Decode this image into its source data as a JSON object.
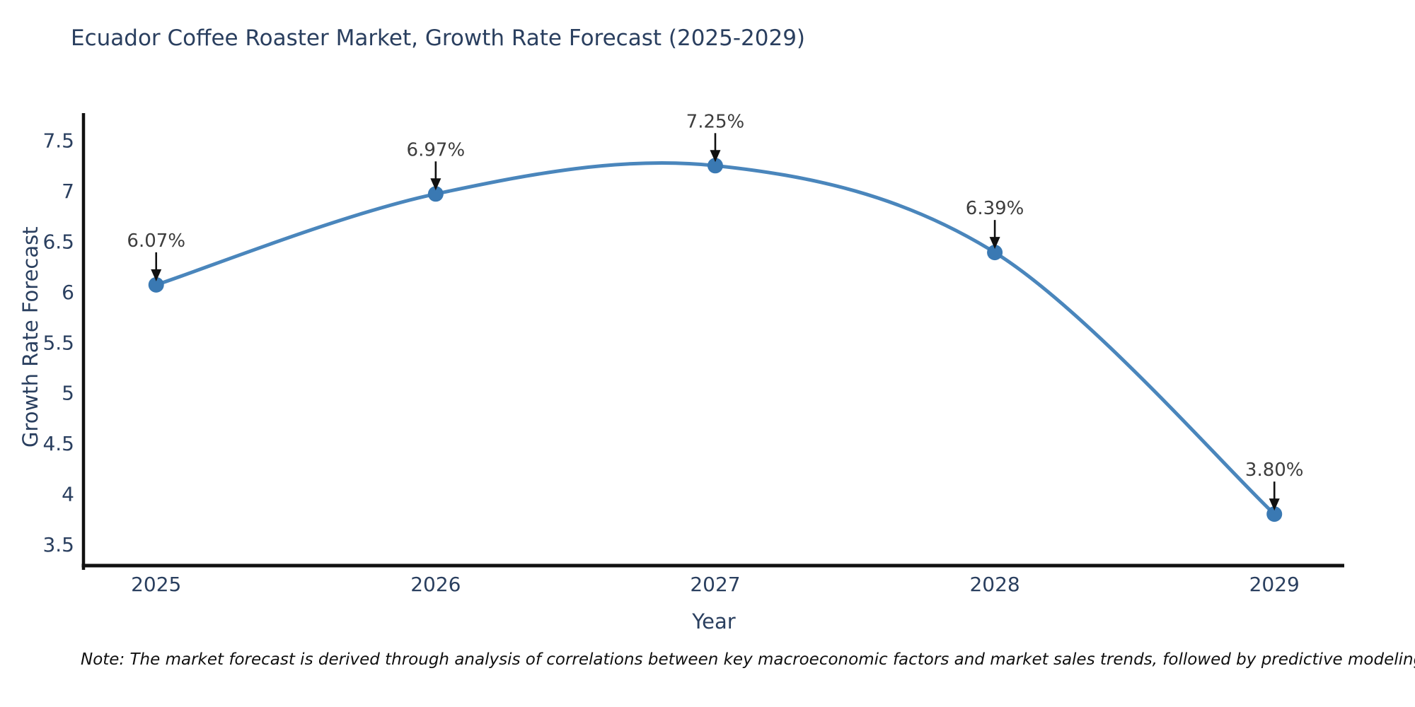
{
  "chart_data": {
    "type": "line",
    "title": "Ecuador Coffee Roaster Market, Growth Rate Forecast (2025-2029)",
    "xlabel": "Year",
    "ylabel": "Growth Rate Forecast",
    "x": [
      2025,
      2026,
      2027,
      2028,
      2029
    ],
    "values": [
      6.07,
      6.97,
      7.25,
      6.39,
      3.8
    ],
    "point_labels": [
      "6.07%",
      "6.97%",
      "7.25%",
      "6.39%",
      "3.80%"
    ],
    "x_tick_labels": [
      "2025",
      "2026",
      "2027",
      "2028",
      "2029"
    ],
    "y_tick_values": [
      7.5,
      7.0,
      6.5,
      6.0,
      5.5,
      5.0,
      4.5,
      4.0,
      3.5
    ],
    "y_tick_labels": [
      "7.5",
      "7",
      "6.5",
      "6",
      "5.5",
      "5",
      "4.5",
      "4",
      "3.5"
    ],
    "xlim": [
      2024.74,
      2029.25
    ],
    "ylim": [
      3.29,
      7.77
    ],
    "line_shape": "spline",
    "grid": false,
    "legend_position": "none",
    "colors": {
      "line": "#4a86bc",
      "marker": "#3a79b3",
      "axis_line": "#111111",
      "tick_label": "#2a3f5f",
      "axis_title": "#2a3f5f",
      "title": "#2a3f5f",
      "annotation_text": "#3d3d3d",
      "annotation_arrow": "#111111",
      "background": "#ffffff"
    }
  },
  "note": {
    "text": "Note: The market forecast is derived through analysis of correlations between key macroeconomic factors and market sales trends, followed by predictive modeling to project future sales"
  }
}
